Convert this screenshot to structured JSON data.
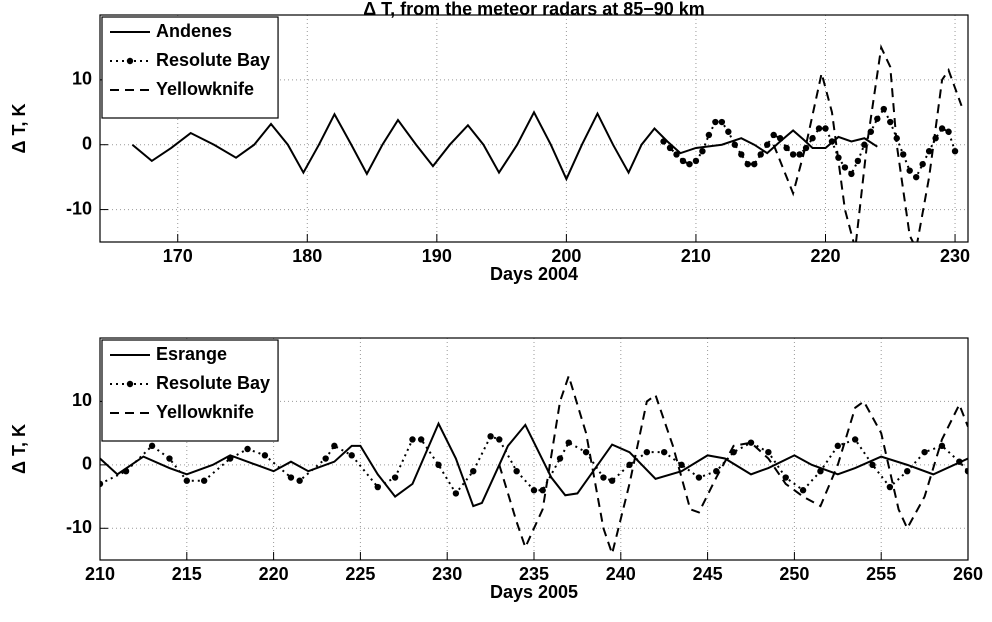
{
  "chart_data": [
    {
      "type": "line",
      "title": "Δ T, from the meteor radars at 85−90 km",
      "xlabel": "Days 2004",
      "ylabel": "Δ T, K",
      "xlim": [
        164,
        231
      ],
      "ylim": [
        -15,
        20
      ],
      "xticks": [
        170,
        180,
        190,
        200,
        210,
        220,
        230
      ],
      "yticks": [
        -10,
        0,
        10
      ],
      "grid": true,
      "legend": "upper left",
      "series": [
        {
          "name": "Andenes",
          "color": "#000000",
          "linestyle": "solid",
          "marker": "none",
          "x": [
            166.5,
            168,
            169.5,
            171,
            172.8,
            174.5,
            175.9,
            177.2,
            178.5,
            179.7,
            180.9,
            182.1,
            183.4,
            184.6,
            185.8,
            187,
            188.4,
            189.7,
            191,
            192.4,
            193.6,
            194.8,
            196.2,
            197.5,
            198.8,
            200,
            201.2,
            202.4,
            203.6,
            204.8,
            205.8,
            206.8,
            207.8,
            208.8,
            210,
            212,
            213.5,
            214.5,
            215.5,
            216.5,
            217.5,
            218.3,
            219,
            220,
            221,
            222,
            223,
            224
          ],
          "values": [
            0,
            -2.5,
            -0.5,
            1.8,
            0,
            -2,
            0,
            3.2,
            0,
            -4.3,
            0,
            4.7,
            0,
            -4.5,
            0,
            3.8,
            0,
            -3.3,
            0,
            3,
            0,
            -4.3,
            0,
            5,
            0,
            -5.3,
            0,
            4.8,
            0,
            -4.3,
            0,
            2.5,
            0.5,
            -1.3,
            -0.5,
            0,
            1,
            0,
            -1.3,
            0.5,
            2.2,
            0.8,
            -0.5,
            -0.5,
            1.2,
            0.5,
            1,
            -0.3
          ]
        },
        {
          "name": "Resolute Bay",
          "color": "#000000",
          "linestyle": "dotted",
          "marker": "dot",
          "x": [
            207.5,
            208,
            208.5,
            209,
            209.5,
            210,
            210.5,
            211,
            211.5,
            212,
            212.5,
            213,
            213.5,
            214,
            214.5,
            215,
            215.5,
            216,
            216.5,
            217,
            217.5,
            218,
            218.5,
            219,
            219.5,
            220,
            220.5,
            221,
            221.5,
            222,
            222.5,
            223,
            223.5,
            224,
            224.5,
            225,
            225.5,
            226,
            226.5,
            227,
            227.5,
            228,
            228.5,
            229,
            229.5,
            230
          ],
          "values": [
            0.5,
            -0.5,
            -1.5,
            -2.5,
            -3,
            -2.5,
            -1,
            1.5,
            3.5,
            3.5,
            2,
            0,
            -1.5,
            -3,
            -3,
            -1.5,
            0,
            1.5,
            1,
            -0.5,
            -1.5,
            -1.5,
            -0.5,
            1,
            2.5,
            2.5,
            0.5,
            -2,
            -3.5,
            -4.5,
            -2.5,
            0,
            2,
            4,
            5.5,
            3.5,
            1,
            -1.5,
            -4,
            -5,
            -3,
            -1,
            1,
            2.5,
            2,
            -1
          ]
        },
        {
          "name": "Yellowknife",
          "color": "#000000",
          "linestyle": "dashed",
          "marker": "none",
          "x": [
            216,
            217.5,
            218.5,
            219.7,
            220.5,
            221.5,
            222.3,
            223.2,
            224.3,
            225,
            225.5,
            226.5,
            227,
            228,
            229,
            229.5,
            230.5
          ],
          "values": [
            0,
            -7.5,
            0,
            11,
            5,
            -10,
            -16,
            0,
            15,
            12,
            0,
            -14,
            -16,
            -5,
            10,
            11.5,
            6
          ]
        }
      ]
    },
    {
      "type": "line",
      "xlabel": "Days 2005",
      "ylabel": "Δ T, K",
      "xlim": [
        210,
        260
      ],
      "ylim": [
        -15,
        20
      ],
      "xticks": [
        210,
        215,
        220,
        225,
        230,
        235,
        240,
        245,
        250,
        255,
        260
      ],
      "yticks": [
        -10,
        0,
        10
      ],
      "grid": true,
      "legend": "upper left",
      "series": [
        {
          "name": "Esrange",
          "color": "#000000",
          "linestyle": "solid",
          "marker": "none",
          "x": [
            210,
            211,
            212.5,
            214,
            215,
            216.5,
            217.5,
            219,
            220,
            221,
            222,
            223.5,
            224.5,
            225,
            226,
            227,
            228,
            229.5,
            230.5,
            231.5,
            232,
            233.5,
            234.5,
            236,
            236.8,
            237.5,
            239.5,
            240.5,
            242,
            243.5,
            245,
            246,
            247.5,
            248.5,
            250,
            251,
            252.5,
            253.5,
            255,
            256.5,
            258,
            260
          ],
          "values": [
            1,
            -1.5,
            1.3,
            -0.5,
            -1.5,
            0,
            1.5,
            0,
            -1,
            0.5,
            -1,
            0.5,
            3,
            3,
            -1.5,
            -5,
            -3,
            6.5,
            1,
            -6.5,
            -6,
            3,
            6.3,
            -2,
            -4.8,
            -4.5,
            3.2,
            2,
            -2.2,
            -1,
            1.5,
            1,
            -1.5,
            -0.5,
            1.5,
            0,
            -1.5,
            -0.5,
            1.3,
            0,
            -1.5,
            1
          ]
        },
        {
          "name": "Resolute Bay",
          "color": "#000000",
          "linestyle": "dotted",
          "marker": "dot",
          "x": [
            210,
            211.5,
            213,
            214,
            215,
            216,
            217.5,
            218.5,
            219.5,
            221,
            221.5,
            223,
            223.5,
            224.5,
            226,
            227,
            228,
            228.5,
            229.5,
            230.5,
            231.5,
            232.5,
            233,
            234,
            235,
            235.5,
            236.5,
            237,
            238,
            239,
            239.5,
            240.5,
            241.5,
            242.5,
            243.5,
            244.5,
            245.5,
            246.5,
            247.5,
            248.5,
            249.5,
            250.5,
            251.5,
            252.5,
            253.5,
            254.5,
            255.5,
            256.5,
            257.5,
            258.5,
            259.5,
            260
          ],
          "values": [
            -3,
            -1,
            3,
            1,
            -2.5,
            -2.5,
            1,
            2.5,
            1.5,
            -2,
            -2.5,
            1,
            3,
            1.5,
            -3.5,
            -2,
            4,
            4,
            0,
            -4.5,
            -1,
            4.5,
            4,
            -1,
            -4,
            -4,
            1,
            3.5,
            2,
            -2,
            -2.5,
            0,
            2,
            2,
            0,
            -2,
            -1,
            2,
            3.5,
            2,
            -2,
            -4,
            -1,
            3,
            4,
            0,
            -3.5,
            -1,
            2,
            3,
            0.5,
            -1
          ]
        },
        {
          "name": "Yellowknife",
          "color": "#000000",
          "linestyle": "dashed",
          "marker": "none",
          "x": [
            233,
            234,
            234.5,
            235.5,
            236.5,
            237,
            238,
            239,
            239.5,
            240.5,
            241.5,
            242,
            243,
            244,
            244.5,
            245.5,
            246.5,
            247.5,
            248.5,
            249.5,
            250.5,
            251.5,
            252.5,
            253.5,
            254,
            255,
            256,
            256.5,
            257.5,
            258.5,
            259.5,
            260
          ],
          "values": [
            0,
            -9,
            -13,
            -7,
            10,
            14,
            5,
            -10,
            -14,
            -3,
            10,
            11,
            3,
            -7,
            -7.5,
            -2,
            3,
            3.5,
            1,
            -3,
            -5,
            -6.5,
            0,
            9,
            10,
            5,
            -7,
            -10,
            -5,
            4,
            9.5,
            6
          ]
        }
      ]
    }
  ]
}
